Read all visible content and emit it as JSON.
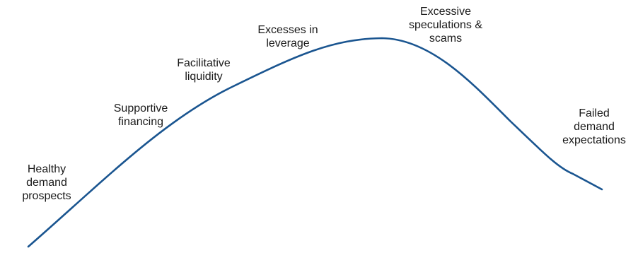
{
  "diagram": {
    "curve_color": "#1a5590",
    "text_color": "#1a1a1a",
    "stages": [
      {
        "lines": [
          "Healthy",
          "demand",
          "prospects"
        ]
      },
      {
        "lines": [
          "Supportive",
          "financing"
        ]
      },
      {
        "lines": [
          "Facilitative",
          "liquidity"
        ]
      },
      {
        "lines": [
          "Excesses in",
          "leverage"
        ]
      },
      {
        "lines": [
          "Excessive",
          "speculations &",
          "scams"
        ]
      },
      {
        "lines": [
          "Failed",
          "demand",
          "expectations"
        ]
      }
    ]
  }
}
